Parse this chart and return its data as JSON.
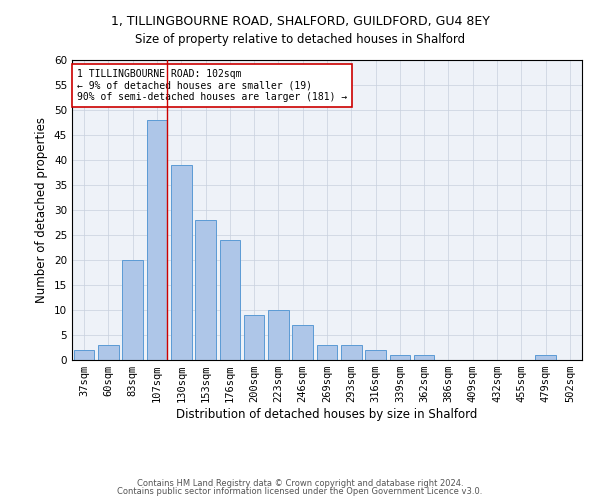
{
  "title1": "1, TILLINGBOURNE ROAD, SHALFORD, GUILDFORD, GU4 8EY",
  "title2": "Size of property relative to detached houses in Shalford",
  "xlabel": "Distribution of detached houses by size in Shalford",
  "ylabel": "Number of detached properties",
  "categories": [
    "37sqm",
    "60sqm",
    "83sqm",
    "107sqm",
    "130sqm",
    "153sqm",
    "176sqm",
    "200sqm",
    "223sqm",
    "246sqm",
    "269sqm",
    "293sqm",
    "316sqm",
    "339sqm",
    "362sqm",
    "386sqm",
    "409sqm",
    "432sqm",
    "455sqm",
    "479sqm",
    "502sqm"
  ],
  "values": [
    2,
    3,
    20,
    48,
    39,
    28,
    24,
    9,
    10,
    7,
    3,
    3,
    2,
    1,
    1,
    0,
    0,
    0,
    0,
    1,
    0
  ],
  "bar_color": "#aec6e8",
  "bar_edge_color": "#5b9bd5",
  "ylim": [
    0,
    60
  ],
  "yticks": [
    0,
    5,
    10,
    15,
    20,
    25,
    30,
    35,
    40,
    45,
    50,
    55,
    60
  ],
  "vline_color": "#cc0000",
  "vline_bar_index": 3,
  "annotation_text": "1 TILLINGBOURNE ROAD: 102sqm\n← 9% of detached houses are smaller (19)\n90% of semi-detached houses are larger (181) →",
  "annotation_box_color": "#ffffff",
  "annotation_box_edge": "#cc0000",
  "footer1": "Contains HM Land Registry data © Crown copyright and database right 2024.",
  "footer2": "Contains public sector information licensed under the Open Government Licence v3.0.",
  "bg_color": "#eef2f8",
  "title1_fontsize": 9,
  "title2_fontsize": 8.5,
  "xlabel_fontsize": 8.5,
  "ylabel_fontsize": 8.5,
  "annotation_fontsize": 7,
  "tick_fontsize": 7.5,
  "footer_fontsize": 6
}
